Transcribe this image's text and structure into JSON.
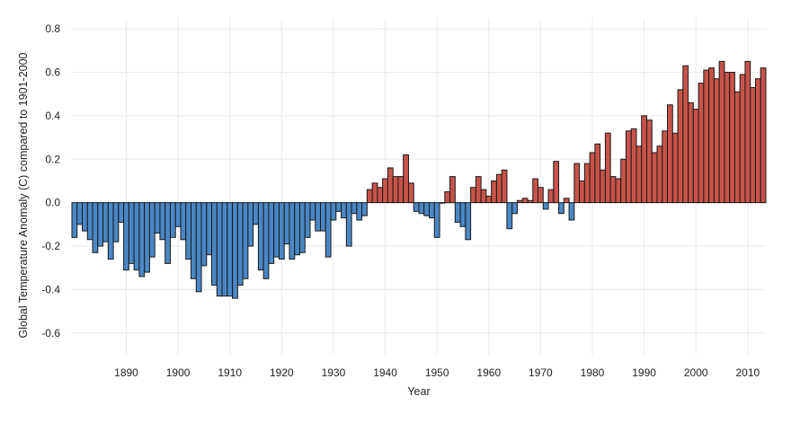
{
  "chart_data": {
    "type": "bar",
    "title": "",
    "xlabel": "Year",
    "ylabel": "Global Temperature Anomaly (C) compared to 1901-2000",
    "x_start": 1880,
    "xlim": [
      1880,
      2014
    ],
    "x_ticks": [
      1890,
      1900,
      1910,
      1920,
      1930,
      1940,
      1950,
      1960,
      1970,
      1980,
      1990,
      2000,
      2010
    ],
    "ylim": [
      -0.7,
      0.85
    ],
    "y_ticks": [
      0.8,
      0.6,
      0.4,
      0.2,
      0.0,
      -0.2,
      -0.4,
      -0.6
    ],
    "y_tick_labels": [
      "0.8",
      "0.6",
      "0.4",
      "0.2",
      "0.0",
      "-0.2",
      "-0.4",
      "-0.6"
    ],
    "grid": true,
    "legend": "none",
    "colors": {
      "positive": "#c8534a",
      "negative": "#4a87c5",
      "outline": "#1a1a1a",
      "grid": "#ebebeb"
    },
    "values": [
      -0.16,
      -0.1,
      -0.13,
      -0.17,
      -0.23,
      -0.2,
      -0.18,
      -0.26,
      -0.18,
      -0.09,
      -0.31,
      -0.28,
      -0.31,
      -0.34,
      -0.32,
      -0.25,
      -0.14,
      -0.17,
      -0.28,
      -0.16,
      -0.11,
      -0.17,
      -0.26,
      -0.35,
      -0.41,
      -0.29,
      -0.24,
      -0.38,
      -0.43,
      -0.43,
      -0.43,
      -0.44,
      -0.38,
      -0.35,
      -0.2,
      -0.1,
      -0.31,
      -0.35,
      -0.28,
      -0.25,
      -0.26,
      -0.19,
      -0.26,
      -0.24,
      -0.23,
      -0.16,
      -0.08,
      -0.13,
      -0.13,
      -0.25,
      -0.08,
      -0.04,
      -0.07,
      -0.2,
      -0.05,
      -0.08,
      -0.06,
      0.06,
      0.09,
      0.07,
      0.11,
      0.16,
      0.12,
      0.12,
      0.22,
      0.09,
      -0.04,
      -0.05,
      -0.06,
      -0.07,
      -0.16,
      0.0,
      0.05,
      0.12,
      -0.09,
      -0.11,
      -0.17,
      0.07,
      0.12,
      0.06,
      0.03,
      0.1,
      0.13,
      0.15,
      -0.12,
      -0.05,
      0.01,
      0.02,
      0.01,
      0.11,
      0.07,
      -0.03,
      0.06,
      0.19,
      -0.05,
      0.02,
      -0.08,
      0.18,
      0.1,
      0.18,
      0.23,
      0.27,
      0.15,
      0.32,
      0.12,
      0.11,
      0.2,
      0.33,
      0.34,
      0.26,
      0.4,
      0.38,
      0.23,
      0.26,
      0.33,
      0.45,
      0.32,
      0.52,
      0.63,
      0.46,
      0.43,
      0.55,
      0.61,
      0.62,
      0.57,
      0.65,
      0.6,
      0.6,
      0.51,
      0.59,
      0.65,
      0.53,
      0.57,
      0.62
    ]
  }
}
